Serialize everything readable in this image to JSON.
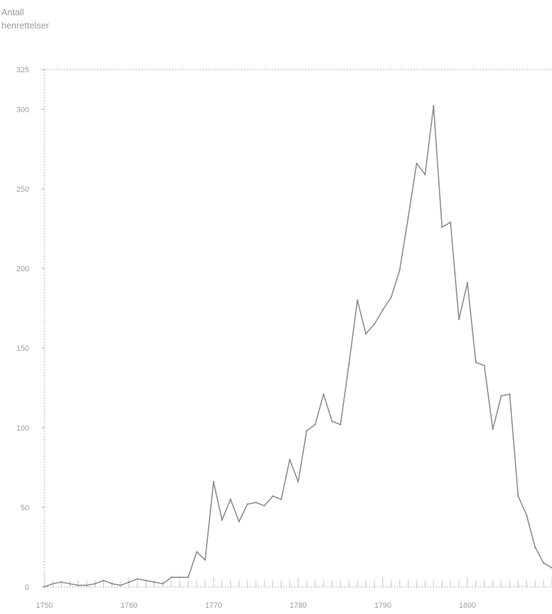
{
  "chart_data": {
    "type": "line",
    "ylabel_lines": [
      "Antall",
      "henrettelser"
    ],
    "x_tick_labels": [
      "1750",
      "1760",
      "1770",
      "1780",
      "1790",
      "1800"
    ],
    "y_tick_labels": [
      "0",
      "50",
      "100",
      "150",
      "200",
      "250",
      "300",
      "325"
    ],
    "xlim": [
      1750,
      1810
    ],
    "ylim": [
      0,
      325
    ],
    "grid": false,
    "series": [
      {
        "color": "#8c8c8c",
        "x": [
          1750,
          1751,
          1752,
          1753,
          1754,
          1755,
          1756,
          1757,
          1758,
          1759,
          1760,
          1761,
          1762,
          1763,
          1764,
          1765,
          1766,
          1767,
          1768,
          1769,
          1770,
          1771,
          1772,
          1773,
          1774,
          1775,
          1776,
          1777,
          1778,
          1779,
          1780,
          1781,
          1782,
          1783,
          1784,
          1785,
          1786,
          1787,
          1788,
          1789,
          1790,
          1791,
          1792,
          1793,
          1794,
          1795,
          1796,
          1797,
          1798,
          1799,
          1800,
          1801,
          1802,
          1803,
          1804,
          1805,
          1806,
          1807,
          1808,
          1809,
          1810
        ],
        "values": [
          0,
          2,
          3,
          2,
          1,
          1,
          2,
          4,
          2,
          1,
          3,
          5,
          4,
          3,
          2,
          6,
          6,
          6,
          22,
          17,
          66,
          42,
          55,
          41,
          52,
          53,
          51,
          57,
          55,
          80,
          66,
          98,
          102,
          121,
          104,
          102,
          140,
          180,
          159,
          165,
          174,
          182,
          199,
          232,
          266,
          259,
          302,
          226,
          229,
          168,
          191,
          141,
          139,
          99,
          120,
          121,
          57,
          45,
          25,
          15,
          12
        ]
      }
    ]
  }
}
